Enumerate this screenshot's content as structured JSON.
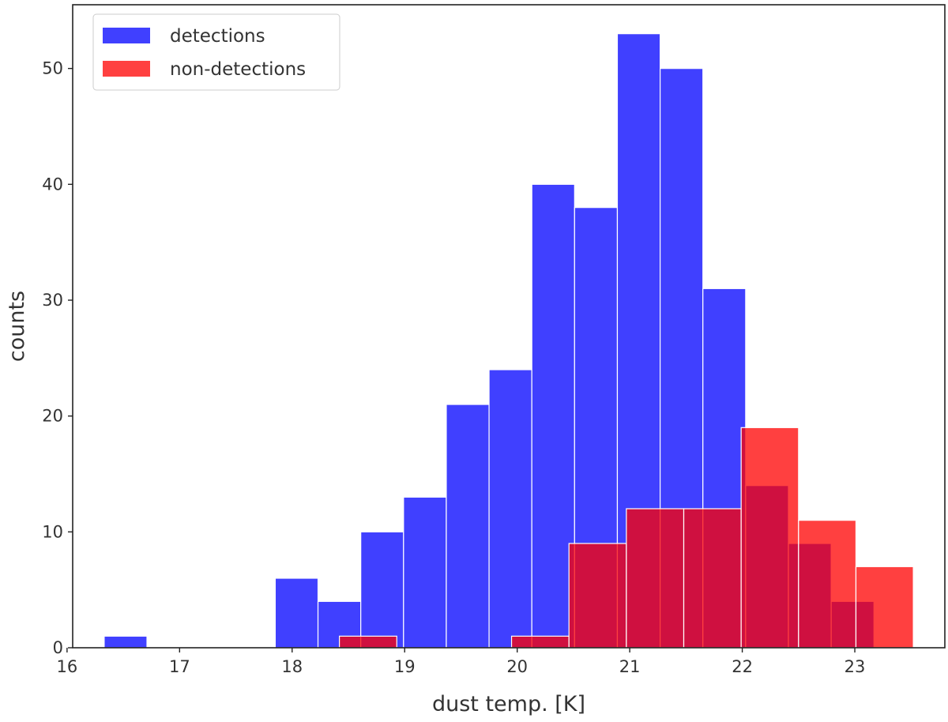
{
  "chart_data": {
    "type": "bar",
    "subtype": "histogram-overlay",
    "xlabel": "dust temp. [K]",
    "ylabel": "counts",
    "xlim": [
      16.05,
      23.8
    ],
    "ylim": [
      0,
      55.5
    ],
    "xticks": [
      16,
      17,
      18,
      19,
      20,
      21,
      22,
      23
    ],
    "yticks": [
      0,
      10,
      20,
      30,
      40,
      50
    ],
    "grid": false,
    "legend_position": "top-left",
    "series": [
      {
        "name": "detections",
        "color": "#0000ff",
        "opacity": 0.75,
        "bins": [
          {
            "x0": 16.33,
            "x1": 16.71,
            "count": 1
          },
          {
            "x0": 16.71,
            "x1": 17.09,
            "count": 0
          },
          {
            "x0": 17.09,
            "x1": 17.47,
            "count": 0
          },
          {
            "x0": 17.47,
            "x1": 17.85,
            "count": 0
          },
          {
            "x0": 17.85,
            "x1": 18.23,
            "count": 6
          },
          {
            "x0": 18.23,
            "x1": 18.61,
            "count": 4
          },
          {
            "x0": 18.61,
            "x1": 18.99,
            "count": 10
          },
          {
            "x0": 18.99,
            "x1": 19.37,
            "count": 13
          },
          {
            "x0": 19.37,
            "x1": 19.75,
            "count": 21
          },
          {
            "x0": 19.75,
            "x1": 20.13,
            "count": 24
          },
          {
            "x0": 20.13,
            "x1": 20.51,
            "count": 40
          },
          {
            "x0": 20.51,
            "x1": 20.89,
            "count": 38
          },
          {
            "x0": 20.89,
            "x1": 21.27,
            "count": 53
          },
          {
            "x0": 21.27,
            "x1": 21.65,
            "count": 50
          },
          {
            "x0": 21.65,
            "x1": 22.03,
            "count": 31
          },
          {
            "x0": 22.03,
            "x1": 22.41,
            "count": 14
          },
          {
            "x0": 22.41,
            "x1": 22.79,
            "count": 9
          },
          {
            "x0": 22.79,
            "x1": 23.17,
            "count": 4
          }
        ]
      },
      {
        "name": "non-detections",
        "color": "#ff0000",
        "opacity": 0.75,
        "bins": [
          {
            "x0": 18.42,
            "x1": 18.93,
            "count": 1
          },
          {
            "x0": 18.93,
            "x1": 19.44,
            "count": 0
          },
          {
            "x0": 19.44,
            "x1": 19.95,
            "count": 0
          },
          {
            "x0": 19.95,
            "x1": 20.46,
            "count": 1
          },
          {
            "x0": 20.46,
            "x1": 20.97,
            "count": 9
          },
          {
            "x0": 20.97,
            "x1": 21.48,
            "count": 12
          },
          {
            "x0": 21.48,
            "x1": 21.99,
            "count": 12
          },
          {
            "x0": 21.99,
            "x1": 22.5,
            "count": 19
          },
          {
            "x0": 22.5,
            "x1": 23.01,
            "count": 11
          },
          {
            "x0": 23.01,
            "x1": 23.52,
            "count": 7
          }
        ]
      }
    ]
  }
}
